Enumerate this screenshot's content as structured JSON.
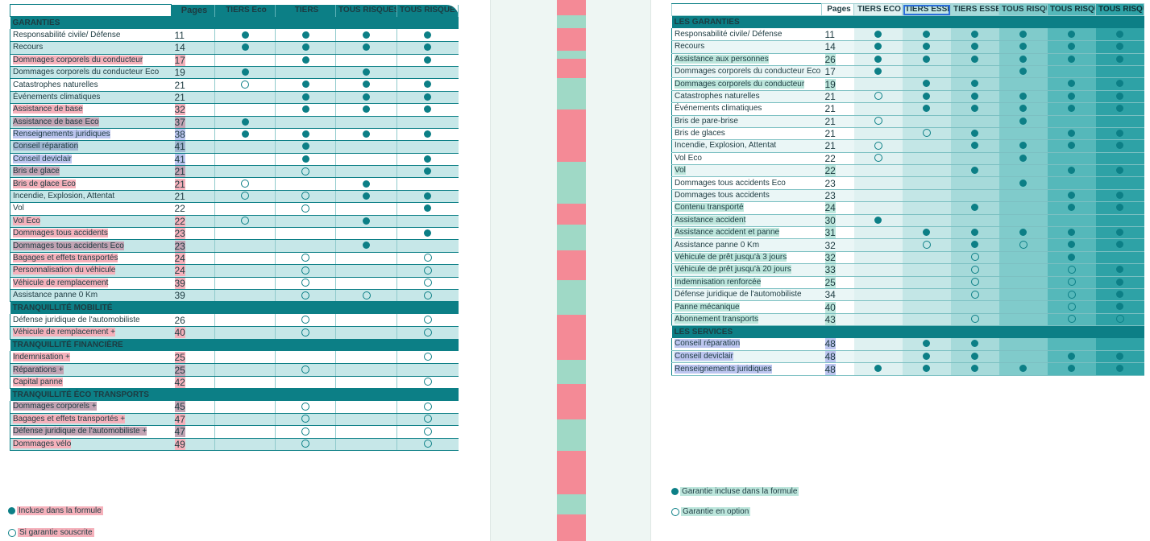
{
  "left": {
    "columns": [
      "Pages",
      "TIERS Eco",
      "TIERS",
      "TOUS RISQUES Eco",
      "TOUS RISQUES"
    ],
    "sections": [
      {
        "title": "GARANTIES",
        "rows": [
          {
            "label": "Responsabilité civile/ Défense",
            "page": "11",
            "marks": [
              "full",
              "full",
              "full",
              "full"
            ],
            "hl": ""
          },
          {
            "label": "Recours",
            "page": "14",
            "marks": [
              "full",
              "full",
              "full",
              "full"
            ],
            "hl": ""
          },
          {
            "label": "Dommages corporels du conducteur",
            "page": "17",
            "marks": [
              "",
              "full",
              "",
              "full"
            ],
            "hl": "pink"
          },
          {
            "label": "Dommages corporels du conducteur Eco",
            "page": "19",
            "marks": [
              "full",
              "",
              "full",
              ""
            ],
            "hl": ""
          },
          {
            "label": "Catastrophes naturelles",
            "page": "21",
            "marks": [
              "option",
              "full",
              "full",
              "full"
            ],
            "hl": ""
          },
          {
            "label": "Événements climatiques",
            "page": "21",
            "marks": [
              "",
              "full",
              "full",
              "full"
            ],
            "hl": ""
          },
          {
            "label": "Assistance de base",
            "page": "32",
            "marks": [
              "",
              "full",
              "full",
              "full"
            ],
            "hl": "pink"
          },
          {
            "label": "Assistance de base Eco",
            "page": "37",
            "marks": [
              "full",
              "",
              "",
              ""
            ],
            "hl": "mauve"
          },
          {
            "label": "Renseignements juridiques",
            "page": "38",
            "marks": [
              "full",
              "full",
              "full",
              "full"
            ],
            "hl": "blue"
          },
          {
            "label": "Conseil réparation",
            "page": "41",
            "marks": [
              "",
              "full",
              "",
              ""
            ],
            "hl": "slate"
          },
          {
            "label": "Conseil deviclair",
            "page": "41",
            "marks": [
              "",
              "full",
              "",
              "full"
            ],
            "hl": "blue"
          },
          {
            "label": "Bris de glace",
            "page": "21",
            "marks": [
              "",
              "option",
              "",
              "full"
            ],
            "hl": "mauve"
          },
          {
            "label": "Bris de glace Eco",
            "page": "21",
            "marks": [
              "option",
              "",
              "full",
              ""
            ],
            "hl": "pink"
          },
          {
            "label": "Incendie, Explosion, Attentat",
            "page": "21",
            "marks": [
              "option",
              "option",
              "full",
              "full"
            ],
            "hl": ""
          },
          {
            "label": "Vol",
            "page": "22",
            "marks": [
              "",
              "option",
              "",
              "full"
            ],
            "hl": ""
          },
          {
            "label": "Vol Eco",
            "page": "22",
            "marks": [
              "option",
              "",
              "full",
              ""
            ],
            "hl": "pink"
          },
          {
            "label": "Dommages tous accidents",
            "page": "23",
            "marks": [
              "",
              "",
              "",
              "full"
            ],
            "hl": "pink"
          },
          {
            "label": "Dommages tous accidents Eco",
            "page": "23",
            "marks": [
              "",
              "",
              "full",
              ""
            ],
            "hl": "mauve"
          },
          {
            "label": "Bagages et effets transportés",
            "page": "24",
            "marks": [
              "",
              "option",
              "",
              "option"
            ],
            "hl": "pink"
          },
          {
            "label": "Personnalisation du véhicule",
            "page": "24",
            "marks": [
              "",
              "option",
              "",
              "option"
            ],
            "hl": "pink"
          },
          {
            "label": "Véhicule de remplacement",
            "page": "39",
            "marks": [
              "",
              "option",
              "",
              "option"
            ],
            "hl": "pink"
          },
          {
            "label": "Assistance panne 0 Km",
            "page": "39",
            "marks": [
              "",
              "option",
              "option",
              "option"
            ],
            "hl": ""
          }
        ]
      },
      {
        "title": "TRANQUILLITÉ MOBILITÉ",
        "rows": [
          {
            "label": "Défense juridique de l'automobiliste",
            "page": "26",
            "marks": [
              "",
              "option",
              "",
              "option"
            ],
            "hl": ""
          },
          {
            "label": "Véhicule de remplacement +",
            "page": "40",
            "marks": [
              "",
              "option",
              "",
              "option"
            ],
            "hl": "pink"
          }
        ]
      },
      {
        "title": "TRANQUILLITÉ FINANCIÈRE",
        "rows": [
          {
            "label": "Indemnisation +",
            "page": "25",
            "marks": [
              "",
              "",
              "",
              "option"
            ],
            "hl": "pink"
          },
          {
            "label": "Réparations +",
            "page": "25",
            "marks": [
              "",
              "option",
              "",
              ""
            ],
            "hl": "mauve"
          },
          {
            "label": "Capital panne",
            "page": "42",
            "marks": [
              "",
              "",
              "",
              "option"
            ],
            "hl": "pink"
          }
        ]
      },
      {
        "title": "TRANQUILLITÉ ÉCO TRANSPORTS",
        "rows": [
          {
            "label": "Dommages corporels +",
            "page": "45",
            "marks": [
              "",
              "option",
              "",
              "option"
            ],
            "hl": "mauve"
          },
          {
            "label": "Bagages et effets transportés +",
            "page": "47",
            "marks": [
              "",
              "option",
              "",
              "option"
            ],
            "hl": "pink"
          },
          {
            "label": "Défense juridique de l'automobiliste +",
            "page": "47",
            "marks": [
              "",
              "option",
              "",
              "option"
            ],
            "hl": "mauve"
          },
          {
            "label": "Dommages vélo",
            "page": "49",
            "marks": [
              "",
              "option",
              "",
              "option"
            ],
            "hl": "pink"
          }
        ]
      }
    ],
    "legend_full": "Incluse dans la formule",
    "legend_option": "Si garantie souscrite"
  },
  "right": {
    "columns": [
      "Pages",
      "TIERS ECO",
      "TIERS ESSENTIEL",
      "TIERS ESSENTIEL+",
      "TOUS RISQUES ECO",
      "TOUS RISQUES CONFORT",
      "TOUS RISQUES CONFORT+"
    ],
    "sections": [
      {
        "title": "LES GARANTIES",
        "rows": [
          {
            "label": "Responsabilité civile/ Défense",
            "page": "11",
            "marks": [
              "full",
              "full",
              "full",
              "full",
              "full",
              "full"
            ],
            "hl": ""
          },
          {
            "label": "Recours",
            "page": "14",
            "marks": [
              "full",
              "full",
              "full",
              "full",
              "full",
              "full"
            ],
            "hl": ""
          },
          {
            "label": "Assistance aux personnes",
            "page": "26",
            "marks": [
              "full",
              "full",
              "full",
              "full",
              "full",
              "full"
            ],
            "hl": "teal"
          },
          {
            "label": "Dommages corporels du conducteur Eco",
            "page": "17",
            "marks": [
              "full",
              "",
              "",
              "full",
              "",
              ""
            ],
            "hl": ""
          },
          {
            "label": "Dommages corporels du conducteur",
            "page": "19",
            "marks": [
              "",
              "full",
              "full",
              "",
              "full",
              "full"
            ],
            "hl": "teal"
          },
          {
            "label": "Catastrophes naturelles",
            "page": "21",
            "marks": [
              "option",
              "full",
              "full",
              "full",
              "full",
              "full"
            ],
            "hl": ""
          },
          {
            "label": "Événements climatiques",
            "page": "21",
            "marks": [
              "",
              "full",
              "full",
              "full",
              "full",
              "full"
            ],
            "hl": ""
          },
          {
            "label": "Bris de pare-brise",
            "page": "21",
            "marks": [
              "option",
              "",
              "",
              "full",
              "",
              ""
            ],
            "hl": ""
          },
          {
            "label": "Bris de glaces",
            "page": "21",
            "marks": [
              "",
              "option",
              "full",
              "",
              "full",
              "full"
            ],
            "hl": ""
          },
          {
            "label": "Incendie, Explosion, Attentat",
            "page": "21",
            "marks": [
              "option",
              "",
              "full",
              "full",
              "full",
              "full"
            ],
            "hl": ""
          },
          {
            "label": "Vol Eco",
            "page": "22",
            "marks": [
              "option",
              "",
              "",
              "full",
              "",
              ""
            ],
            "hl": ""
          },
          {
            "label": "Vol",
            "page": "22",
            "marks": [
              "",
              "",
              "full",
              "",
              "full",
              "full"
            ],
            "hl": "teal"
          },
          {
            "label": "Dommages tous accidents Eco",
            "page": "23",
            "marks": [
              "",
              "",
              "",
              "full",
              "",
              ""
            ],
            "hl": ""
          },
          {
            "label": "Dommages tous accidents",
            "page": "23",
            "marks": [
              "",
              "",
              "",
              "",
              "full",
              "full"
            ],
            "hl": ""
          },
          {
            "label": "Contenu transporté",
            "page": "24",
            "marks": [
              "",
              "",
              "full",
              "",
              "full",
              "full"
            ],
            "hl": "teal"
          },
          {
            "label": "Assistance accident",
            "page": "30",
            "marks": [
              "full",
              "",
              "",
              "",
              "",
              ""
            ],
            "hl": "teal"
          },
          {
            "label": "Assistance accident et panne",
            "page": "31",
            "marks": [
              "",
              "full",
              "full",
              "full",
              "full",
              "full"
            ],
            "hl": "teal"
          },
          {
            "label": "Assistance panne 0 Km",
            "page": "32",
            "marks": [
              "",
              "option",
              "full",
              "option",
              "full",
              "full"
            ],
            "hl": ""
          },
          {
            "label": "Véhicule de prêt jusqu'à 3 jours",
            "page": "32",
            "marks": [
              "",
              "",
              "option",
              "",
              "full",
              ""
            ],
            "hl": "teal"
          },
          {
            "label": "Véhicule de prêt jusqu'à 20 jours",
            "page": "33",
            "marks": [
              "",
              "",
              "option",
              "",
              "option",
              "full"
            ],
            "hl": "teal"
          },
          {
            "label": "Indemnisation renforcée",
            "page": "25",
            "marks": [
              "",
              "",
              "option",
              "",
              "option",
              "full"
            ],
            "hl": "teal"
          },
          {
            "label": "Défense juridique de l'automobiliste",
            "page": "34",
            "marks": [
              "",
              "",
              "option",
              "",
              "option",
              "full"
            ],
            "hl": ""
          },
          {
            "label": "Panne mécanique",
            "page": "40",
            "marks": [
              "",
              "",
              "",
              "",
              "option",
              "full"
            ],
            "hl": "teal"
          },
          {
            "label": "Abonnement transports",
            "page": "43",
            "marks": [
              "",
              "",
              "option",
              "",
              "option",
              "option"
            ],
            "hl": "teal"
          }
        ]
      },
      {
        "title": "LES SERVICES",
        "rows": [
          {
            "label": "Conseil réparation",
            "page": "48",
            "marks": [
              "",
              "full",
              "full",
              "",
              "",
              ""
            ],
            "hl": "blue"
          },
          {
            "label": "Conseil deviclair",
            "page": "48",
            "marks": [
              "",
              "full",
              "full",
              "",
              "full",
              "full"
            ],
            "hl": "blue"
          },
          {
            "label": "Renseignements juridiques",
            "page": "48",
            "marks": [
              "full",
              "full",
              "full",
              "full",
              "full",
              "full"
            ],
            "hl": "blue"
          }
        ]
      }
    ],
    "legend_full": "Garantie incluse dans la formule",
    "legend_option": "Garantie en option"
  },
  "middle_band": [
    {
      "color": "#f48a96",
      "h": 18
    },
    {
      "color": "#9fd9c6",
      "h": 14
    },
    {
      "color": "#f48a96",
      "h": 26
    },
    {
      "color": "#9fd9c6",
      "h": 10
    },
    {
      "color": "#f48a96",
      "h": 22
    },
    {
      "color": "#9fd9c6",
      "h": 36
    },
    {
      "color": "#f48a96",
      "h": 60
    },
    {
      "color": "#9fd9c6",
      "h": 48
    },
    {
      "color": "#f48a96",
      "h": 24
    },
    {
      "color": "#9fd9c6",
      "h": 30
    },
    {
      "color": "#f48a96",
      "h": 34
    },
    {
      "color": "#9fd9c6",
      "h": 40
    },
    {
      "color": "#f48a96",
      "h": 52
    },
    {
      "color": "#9fd9c6",
      "h": 28
    },
    {
      "color": "#f48a96",
      "h": 40
    },
    {
      "color": "#9fd9c6",
      "h": 36
    },
    {
      "color": "#f48a96",
      "h": 50
    },
    {
      "color": "#9fd9c6",
      "h": 24
    },
    {
      "color": "#f48a96",
      "h": 30
    }
  ]
}
